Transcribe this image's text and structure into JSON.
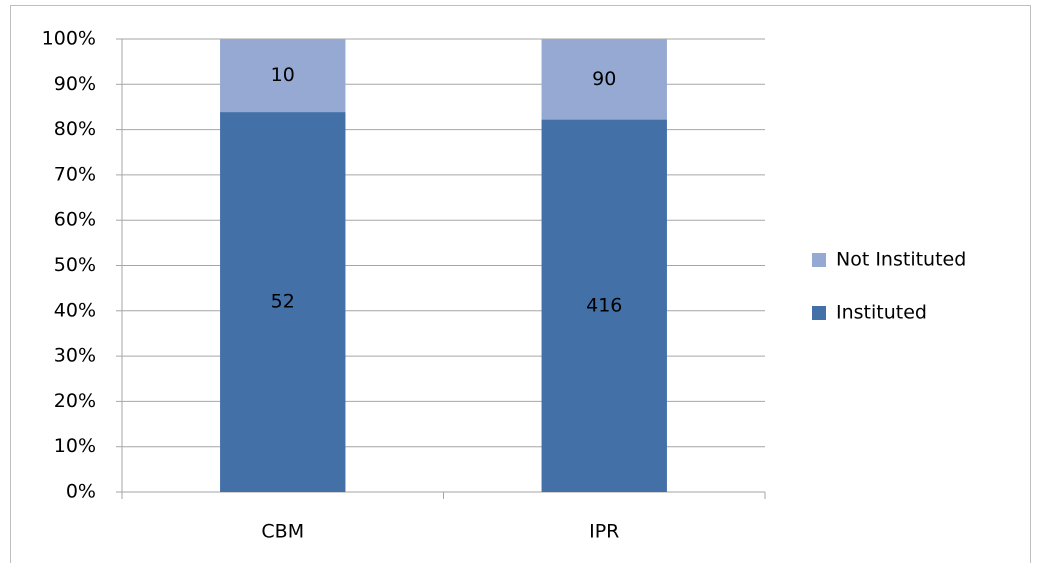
{
  "chart_data": {
    "type": "bar",
    "stacked": "percent",
    "categories": [
      "CBM",
      "IPR"
    ],
    "series": [
      {
        "name": "Instituted",
        "color": "#4470a8",
        "values": [
          52,
          416
        ]
      },
      {
        "name": "Not Instituted",
        "color": "#95a9d3",
        "values": [
          10,
          90
        ]
      }
    ],
    "ylim": [
      0,
      100
    ],
    "yticks": [
      {
        "value": 0,
        "label": "0%"
      },
      {
        "value": 10,
        "label": "10%"
      },
      {
        "value": 20,
        "label": "20%"
      },
      {
        "value": 30,
        "label": "30%"
      },
      {
        "value": 40,
        "label": "40%"
      },
      {
        "value": 50,
        "label": "50%"
      },
      {
        "value": 60,
        "label": "60%"
      },
      {
        "value": 70,
        "label": "70%"
      },
      {
        "value": 80,
        "label": "80%"
      },
      {
        "value": 90,
        "label": "90%"
      },
      {
        "value": 100,
        "label": "100%"
      }
    ],
    "grid": true,
    "legend": "right"
  }
}
